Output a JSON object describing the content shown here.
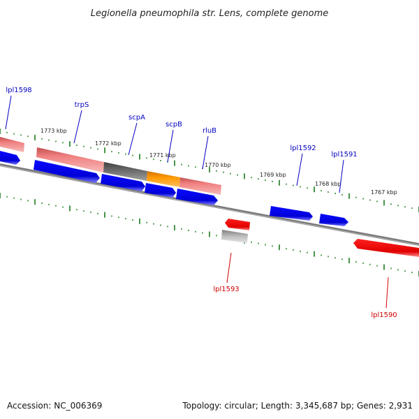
{
  "title": "Legionella pneumophila str. Lens, complete genome",
  "accession": "Accession: NC_006369",
  "summary": "Topology: circular; Length: 3,345,687 bp; Genes: 2,931",
  "kbp_labels": [
    {
      "text": "1773 kbp"
    },
    {
      "text": "1772 kbp"
    },
    {
      "text": "1771 kbp"
    },
    {
      "text": "1770 kbp"
    },
    {
      "text": "1769 kbp"
    },
    {
      "text": "1768 kbp"
    },
    {
      "text": "1767 kbp"
    }
  ],
  "gene_labels": [
    {
      "name": "lpl1598",
      "strand": "forward"
    },
    {
      "name": "trpS",
      "strand": "forward"
    },
    {
      "name": "scpA",
      "strand": "forward"
    },
    {
      "name": "scpB",
      "strand": "forward"
    },
    {
      "name": "rluB",
      "strand": "forward"
    },
    {
      "name": "lpl1592",
      "strand": "forward"
    },
    {
      "name": "lpl1591",
      "strand": "forward"
    },
    {
      "name": "lpl1593",
      "strand": "reverse"
    },
    {
      "name": "lpl1590",
      "strand": "reverse"
    }
  ],
  "colors": {
    "forward_gene": "#0000ff",
    "reverse_gene": "#ff0000",
    "forward_label": "#0000c0",
    "reverse_label": "#d00000",
    "ticks": "#1a7a1a",
    "backbone": "#808080",
    "highlight_orange": "#ff9900",
    "highlight_pink": "#f08080",
    "highlight_gray": "#666666"
  }
}
